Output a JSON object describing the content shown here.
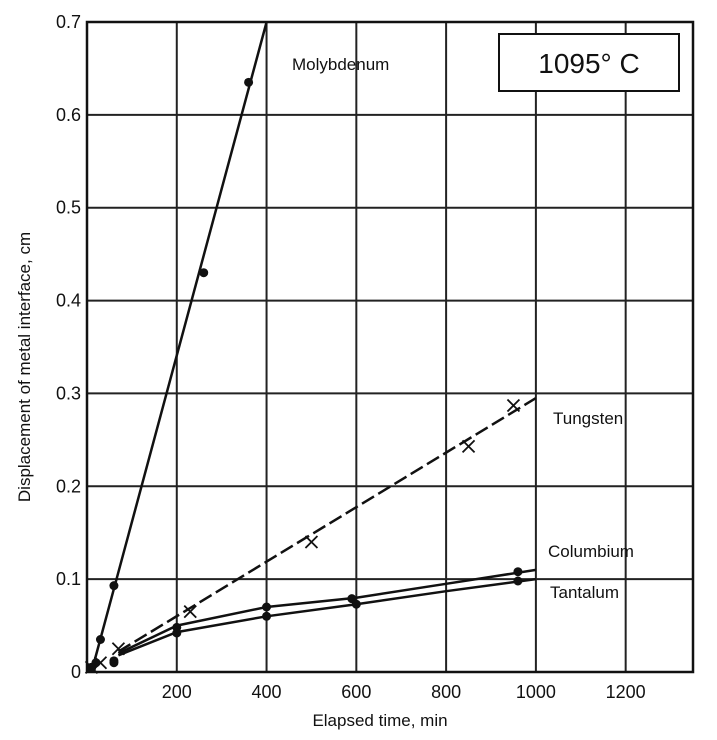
{
  "chart_data": {
    "type": "line",
    "title": "",
    "annotation": "1095°  C",
    "xlabel": "Elapsed time, min",
    "ylabel": "Displacement of metal interface, cm",
    "xlim": [
      0,
      1350
    ],
    "ylim": [
      0,
      0.7
    ],
    "xticks": [
      200,
      400,
      600,
      800,
      1000,
      1200
    ],
    "xtick_labels": [
      "200",
      "400",
      "600",
      "800",
      "1000",
      "1200"
    ],
    "yticks": [
      0,
      0.1,
      0.2,
      0.3,
      0.4,
      0.5,
      0.6,
      0.7
    ],
    "ytick_labels": [
      "0",
      "0.1",
      "0.2",
      "0.3",
      "0.4",
      "0.5",
      "0.6",
      "0.7"
    ],
    "grid": true,
    "series": [
      {
        "name": "Molybdenum",
        "marker": "dot",
        "line_style": "solid",
        "points": [
          [
            10,
            0.005
          ],
          [
            20,
            0.01
          ],
          [
            30,
            0.035
          ],
          [
            60,
            0.093
          ],
          [
            260,
            0.43
          ],
          [
            360,
            0.635
          ]
        ],
        "line": [
          [
            10,
            0.0
          ],
          [
            400,
            0.7
          ]
        ]
      },
      {
        "name": "Tungsten",
        "marker": "x",
        "line_style": "dashed",
        "points": [
          [
            10,
            0.005
          ],
          [
            30,
            0.01
          ],
          [
            70,
            0.025
          ],
          [
            230,
            0.065
          ],
          [
            500,
            0.14
          ],
          [
            850,
            0.243
          ],
          [
            950,
            0.287
          ]
        ],
        "line": [
          [
            70,
            0.022
          ],
          [
            1000,
            0.295
          ]
        ]
      },
      {
        "name": "Columbium",
        "marker": "dot",
        "line_style": "solid",
        "points": [
          [
            10,
            0.005
          ],
          [
            60,
            0.012
          ],
          [
            200,
            0.048
          ],
          [
            400,
            0.07
          ],
          [
            590,
            0.079
          ],
          [
            960,
            0.108
          ]
        ],
        "line": [
          [
            70,
            0.02
          ],
          [
            200,
            0.05
          ],
          [
            400,
            0.07
          ],
          [
            600,
            0.08
          ],
          [
            800,
            0.095
          ],
          [
            1000,
            0.11
          ]
        ]
      },
      {
        "name": "Tantalum",
        "marker": "dot",
        "line_style": "solid",
        "points": [
          [
            10,
            0.004
          ],
          [
            60,
            0.01
          ],
          [
            200,
            0.042
          ],
          [
            400,
            0.06
          ],
          [
            600,
            0.073
          ],
          [
            960,
            0.098
          ]
        ],
        "line": [
          [
            70,
            0.018
          ],
          [
            200,
            0.043
          ],
          [
            400,
            0.06
          ],
          [
            600,
            0.073
          ],
          [
            800,
            0.087
          ],
          [
            1000,
            0.1
          ]
        ]
      }
    ]
  }
}
